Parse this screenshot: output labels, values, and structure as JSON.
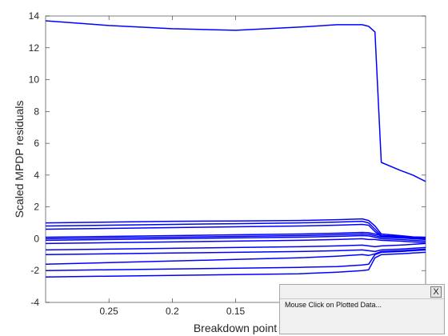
{
  "chart_data": {
    "type": "line",
    "title": "",
    "xlabel": "Breakdown point",
    "ylabel": "Scaled MPDP residuals",
    "x_reversed": true,
    "xlim": [
      0.0,
      0.3
    ],
    "ylim": [
      -4,
      14
    ],
    "xticks": [
      0.25,
      0.2,
      0.15
    ],
    "xtick_labels": [
      "0.25",
      "0.2",
      "0.15"
    ],
    "yticks": [
      -4,
      -2,
      0,
      2,
      4,
      6,
      8,
      10,
      12,
      14
    ],
    "ytick_labels": [
      "-4",
      "-2",
      "0",
      "2",
      "4",
      "6",
      "8",
      "10",
      "12",
      "14"
    ],
    "grid": false,
    "legend": "none",
    "color": "#0000ff",
    "x": [
      0.3,
      0.25,
      0.2,
      0.15,
      0.1,
      0.07,
      0.05,
      0.045,
      0.04,
      0.035,
      0.02,
      0.01,
      0.0
    ],
    "series": [
      {
        "values": [
          13.7,
          13.4,
          13.2,
          13.1,
          13.3,
          13.45,
          13.45,
          13.35,
          13.0,
          4.8,
          4.3,
          4.0,
          3.6
        ]
      },
      {
        "values": [
          1.0,
          1.05,
          1.1,
          1.12,
          1.15,
          1.2,
          1.25,
          1.15,
          0.8,
          0.3,
          0.2,
          0.12,
          0.1
        ]
      },
      {
        "values": [
          0.8,
          0.85,
          0.9,
          0.95,
          1.0,
          1.05,
          1.1,
          1.0,
          0.6,
          0.2,
          0.15,
          0.1,
          0.05
        ]
      },
      {
        "values": [
          0.6,
          0.65,
          0.7,
          0.75,
          0.8,
          0.85,
          0.9,
          0.85,
          0.45,
          0.15,
          0.1,
          0.05,
          0.0
        ]
      },
      {
        "values": [
          0.1,
          0.15,
          0.2,
          0.25,
          0.3,
          0.35,
          0.4,
          0.38,
          0.3,
          0.2,
          0.15,
          0.1,
          0.05
        ]
      },
      {
        "values": [
          0.0,
          0.05,
          0.1,
          0.15,
          0.2,
          0.25,
          0.3,
          0.28,
          0.2,
          0.1,
          0.05,
          0.0,
          -0.05
        ]
      },
      {
        "values": [
          -0.1,
          -0.05,
          0.0,
          0.05,
          0.1,
          0.15,
          0.2,
          0.18,
          0.1,
          0.0,
          -0.05,
          -0.1,
          -0.15
        ]
      },
      {
        "values": [
          -0.3,
          -0.25,
          -0.2,
          -0.15,
          -0.1,
          -0.05,
          0.0,
          -0.05,
          -0.05,
          -0.1,
          -0.15,
          -0.2,
          -0.25
        ]
      },
      {
        "values": [
          -0.7,
          -0.65,
          -0.6,
          -0.55,
          -0.5,
          -0.45,
          -0.4,
          -0.45,
          -0.5,
          -0.45,
          -0.4,
          -0.35,
          -0.3
        ]
      },
      {
        "values": [
          -1.0,
          -0.95,
          -0.9,
          -0.85,
          -0.8,
          -0.75,
          -0.7,
          -0.75,
          -0.8,
          -0.7,
          -0.65,
          -0.6,
          -0.55
        ]
      },
      {
        "values": [
          -1.6,
          -1.5,
          -1.4,
          -1.3,
          -1.2,
          -1.1,
          -1.0,
          -1.05,
          -0.95,
          -0.8,
          -0.75,
          -0.7,
          -0.65
        ]
      },
      {
        "values": [
          -2.0,
          -1.95,
          -1.9,
          -1.85,
          -1.8,
          -1.75,
          -1.65,
          -1.6,
          -1.0,
          -0.85,
          -0.8,
          -0.75,
          -0.7
        ]
      },
      {
        "values": [
          -2.4,
          -2.35,
          -2.3,
          -2.25,
          -2.2,
          -2.1,
          -2.0,
          -1.95,
          -1.2,
          -1.0,
          -0.95,
          -0.9,
          -0.85
        ]
      }
    ]
  },
  "popup": {
    "close_label": "X",
    "message": "Mouse Click on Plotted Data..."
  }
}
